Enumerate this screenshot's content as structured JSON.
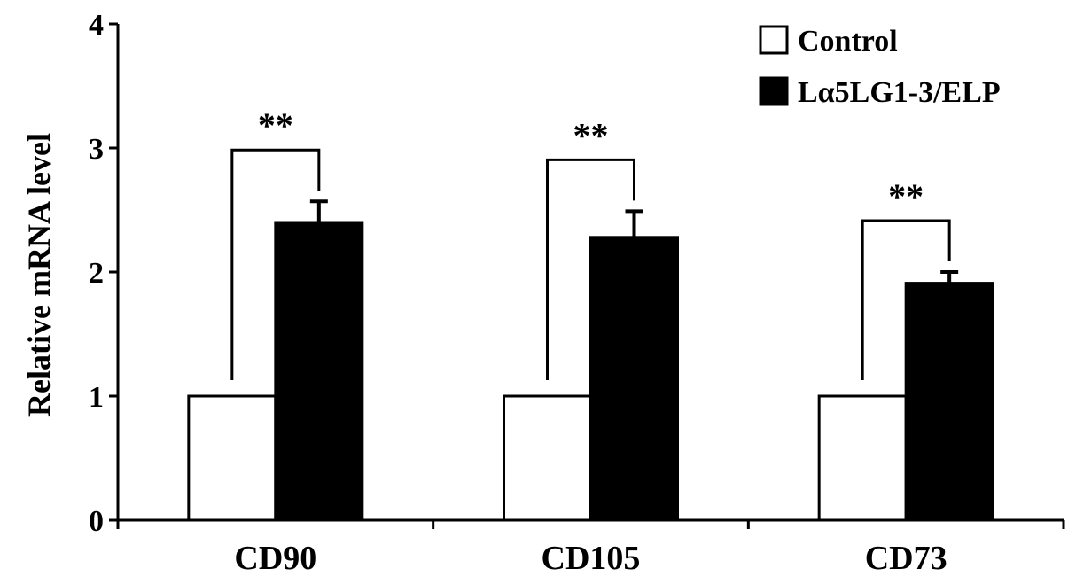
{
  "chart_data": {
    "type": "bar",
    "title": "",
    "xlabel": "",
    "ylabel": "Relative mRNA level",
    "ylim": [
      0,
      4
    ],
    "yticks": [
      0,
      1,
      2,
      3,
      4
    ],
    "categories": [
      "CD90",
      "CD105",
      "CD73"
    ],
    "series": [
      {
        "name": "Control",
        "values": [
          1,
          1,
          1
        ],
        "errors": [
          0,
          0,
          0
        ],
        "color": "#ffffff"
      },
      {
        "name": "Lα5LG1-3/ELP",
        "values": [
          2.4,
          2.28,
          1.91
        ],
        "errors": [
          0.17,
          0.21,
          0.09
        ],
        "color": "#000000"
      }
    ],
    "significance": [
      "**",
      "**",
      "**"
    ],
    "legend": "top-right",
    "grid": false
  }
}
